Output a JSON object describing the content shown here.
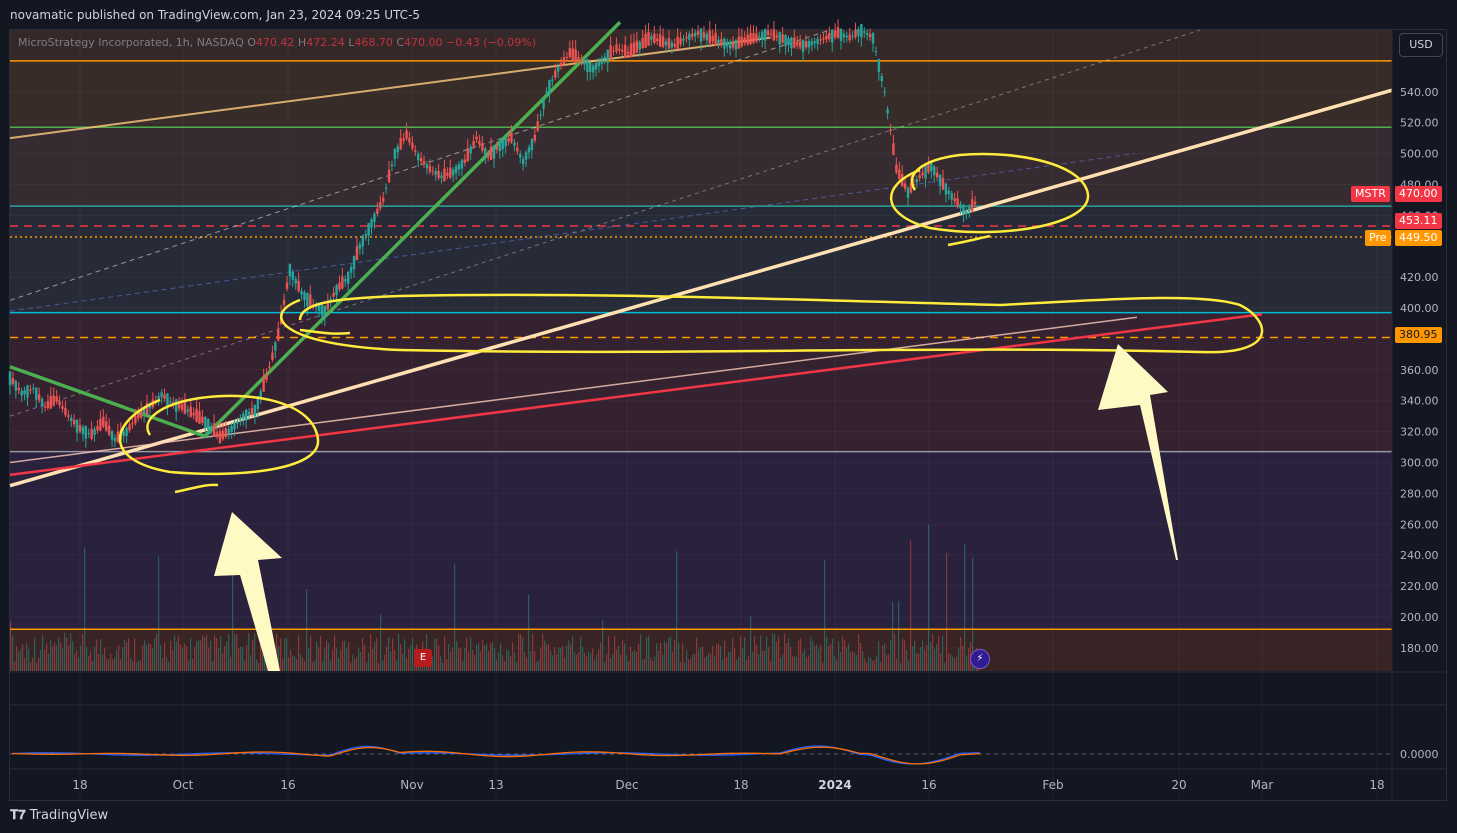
{
  "header": {
    "published_text": "novamatic published on TradingView.com, Jan 23, 2024 09:25 UTC-5"
  },
  "legend": {
    "symbol": "MicroStrategy Incorporated, 1h, NASDAQ",
    "o_label": "O",
    "o_value": "470.42",
    "h_label": "H",
    "h_value": "472.24",
    "l_label": "L",
    "l_value": "468.70",
    "c_label": "C",
    "c_value": "470.00",
    "change": "−0.43 (−0.09%)"
  },
  "currency_button": "USD",
  "price_tags": {
    "symbol_label": "MSTR",
    "last_price": "470.00",
    "line_price": "453.11",
    "pre_label": "Pre",
    "pre_price": "449.50",
    "dashed_level": "380.95"
  },
  "markers": {
    "earnings": "E",
    "dividend": "⚡"
  },
  "colors": {
    "background": "#131722",
    "up": "#26a69a",
    "down": "#ef5350",
    "annotation_yellow": "#ffeb3b",
    "arrow_cream": "#fff9c4",
    "trend_green": "#4caf50",
    "trend_cream": "#ffe0b2",
    "trend_red": "#f23645",
    "level_orange": "#ff9800",
    "level_cyan": "#00bcd4"
  },
  "chart_data": {
    "type": "line",
    "ylim": [
      165,
      580
    ],
    "y_ticks": [
      "540.00",
      "520.00",
      "500.00",
      "480.00",
      "460.00",
      "420.00",
      "400.00",
      "360.00",
      "340.00",
      "320.00",
      "300.00",
      "280.00",
      "260.00",
      "240.00",
      "220.00",
      "200.00",
      "180.00"
    ],
    "x_ticks": [
      "18",
      "Oct",
      "16",
      "Nov",
      "13",
      "Dec",
      "18",
      "2024",
      "16",
      "Feb",
      "20",
      "Mar",
      "18"
    ],
    "indicator_tick": "0.0000",
    "horizontal_levels": [
      {
        "price": 560,
        "color": "#ff9800"
      },
      {
        "price": 517,
        "color": "#4caf50"
      },
      {
        "price": 466,
        "color": "#26a69a"
      },
      {
        "price": 453.11,
        "color": "#f23645",
        "style": "dashed"
      },
      {
        "price": 446,
        "color": "#ff9800",
        "style": "dotted"
      },
      {
        "price": 397,
        "color": "#00bcd4"
      },
      {
        "price": 380.95,
        "color": "#ff9800",
        "style": "dashed"
      },
      {
        "price": 307,
        "color": "#9598a1"
      },
      {
        "price": 192,
        "color": "#ff9800"
      }
    ],
    "price_path": [
      [
        0,
        355
      ],
      [
        2,
        345
      ],
      [
        4,
        348
      ],
      [
        6,
        336
      ],
      [
        8,
        341
      ],
      [
        10,
        330
      ],
      [
        12,
        322
      ],
      [
        14,
        318
      ],
      [
        16,
        326
      ],
      [
        18,
        315
      ],
      [
        20,
        320
      ],
      [
        22,
        330
      ],
      [
        24,
        336
      ],
      [
        26,
        344
      ],
      [
        28,
        338
      ],
      [
        30,
        335
      ],
      [
        32,
        330
      ],
      [
        34,
        325
      ],
      [
        36,
        316
      ],
      [
        38,
        322
      ],
      [
        40,
        330
      ],
      [
        42,
        334
      ],
      [
        44,
        355
      ],
      [
        46,
        382
      ],
      [
        48,
        425
      ],
      [
        50,
        410
      ],
      [
        52,
        402
      ],
      [
        54,
        398
      ],
      [
        56,
        412
      ],
      [
        58,
        420
      ],
      [
        60,
        440
      ],
      [
        62,
        455
      ],
      [
        64,
        470
      ],
      [
        66,
        500
      ],
      [
        68,
        512
      ],
      [
        70,
        498
      ],
      [
        72,
        490
      ],
      [
        74,
        485
      ],
      [
        76,
        488
      ],
      [
        78,
        495
      ],
      [
        80,
        510
      ],
      [
        82,
        498
      ],
      [
        84,
        505
      ],
      [
        86,
        510
      ],
      [
        88,
        495
      ],
      [
        90,
        510
      ],
      [
        92,
        540
      ],
      [
        94,
        555
      ],
      [
        96,
        565
      ],
      [
        98,
        560
      ],
      [
        100,
        555
      ],
      [
        102,
        562
      ],
      [
        104,
        568
      ],
      [
        106,
        565
      ],
      [
        108,
        570
      ],
      [
        110,
        575
      ],
      [
        112,
        572
      ],
      [
        114,
        570
      ],
      [
        116,
        575
      ],
      [
        118,
        578
      ],
      [
        120,
        575
      ],
      [
        122,
        572
      ],
      [
        124,
        570
      ],
      [
        126,
        573
      ],
      [
        128,
        575
      ],
      [
        130,
        578
      ],
      [
        132,
        575
      ],
      [
        134,
        572
      ],
      [
        136,
        570
      ],
      [
        138,
        572
      ],
      [
        140,
        575
      ],
      [
        142,
        578
      ],
      [
        144,
        575
      ],
      [
        146,
        580
      ],
      [
        148,
        575
      ],
      [
        150,
        540
      ],
      [
        152,
        490
      ],
      [
        154,
        475
      ],
      [
        156,
        485
      ],
      [
        158,
        492
      ],
      [
        160,
        480
      ],
      [
        162,
        470
      ],
      [
        164,
        462
      ],
      [
        166,
        470
      ]
    ],
    "trendlines": [
      {
        "name": "",
        "color": "#4caf50",
        "points": [
          [
            0,
            362
          ],
          [
            48,
            315
          ],
          [
            148,
            590
          ]
        ]
      },
      {
        "name": "",
        "color": "#ffe0b2",
        "points": [
          [
            0,
            285
          ],
          [
            230,
            540
          ]
        ]
      },
      {
        "name": "",
        "color": "#f23645",
        "points": [
          [
            0,
            292
          ],
          [
            205,
            396
          ]
        ]
      },
      {
        "name": "",
        "color": "#ffe0b2",
        "points": [
          [
            0,
            510
          ],
          [
            180,
            620
          ]
        ]
      }
    ]
  }
}
